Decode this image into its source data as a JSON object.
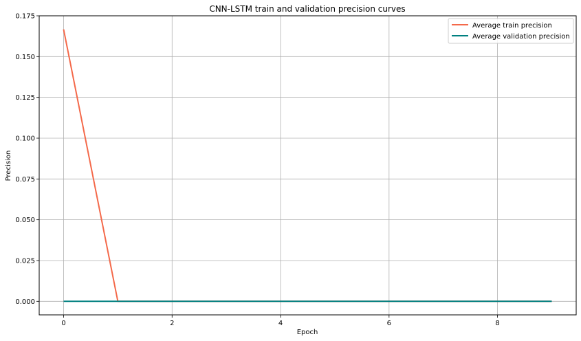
{
  "chart_data": {
    "type": "line",
    "title": "CNN-LSTM train and validation precision curves",
    "xlabel": "Epoch",
    "ylabel": "Precision",
    "xlim": [
      -0.45,
      9.45
    ],
    "ylim": [
      -0.0083,
      0.175
    ],
    "xticks": [
      0,
      2,
      4,
      6,
      8
    ],
    "xtick_labels": [
      "0",
      "2",
      "4",
      "6",
      "8"
    ],
    "yticks": [
      0.0,
      0.025,
      0.05,
      0.075,
      0.1,
      0.125,
      0.15,
      0.175
    ],
    "ytick_labels": [
      "0.000",
      "0.025",
      "0.050",
      "0.075",
      "0.100",
      "0.125",
      "0.150",
      "0.175"
    ],
    "grid": true,
    "legend_position": "top-right",
    "series": [
      {
        "name": "Average train precision",
        "color": "#f4694a",
        "x": [
          0,
          1,
          2,
          3,
          4,
          5,
          6,
          7,
          8,
          9
        ],
        "y": [
          0.1667,
          0,
          0,
          0,
          0,
          0,
          0,
          0,
          0,
          0
        ]
      },
      {
        "name": "Average validation precision",
        "color": "#008080",
        "x": [
          0,
          1,
          2,
          3,
          4,
          5,
          6,
          7,
          8,
          9
        ],
        "y": [
          0,
          0,
          0,
          0,
          0,
          0,
          0,
          0,
          0,
          0
        ]
      }
    ]
  }
}
